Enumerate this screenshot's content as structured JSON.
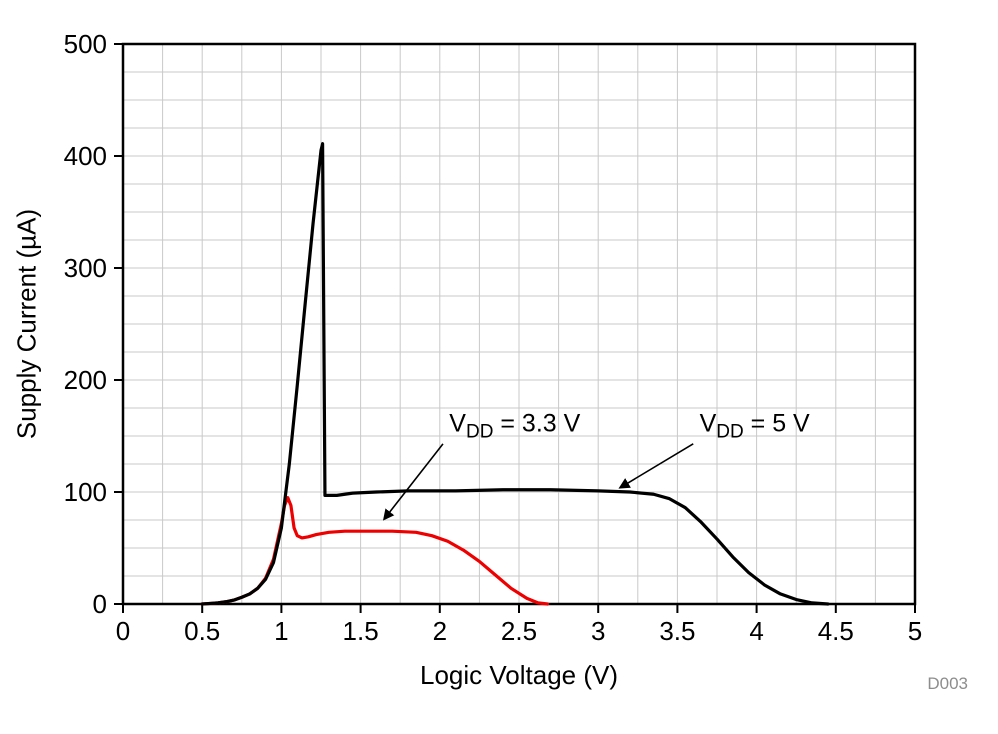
{
  "chart_data": {
    "type": "line",
    "title": "",
    "xlabel": "Logic Voltage (V)",
    "ylabel": "Supply Current (µA)",
    "watermark": "D003",
    "xlim": [
      0,
      5
    ],
    "ylim": [
      0,
      500
    ],
    "x_ticks": [
      0,
      0.5,
      1,
      1.5,
      2,
      2.5,
      3,
      3.5,
      4,
      4.5,
      5
    ],
    "x_tick_labels": [
      "0",
      "0.5",
      "1",
      "1.5",
      "2",
      "2.5",
      "3",
      "3.5",
      "4",
      "4.5",
      "5"
    ],
    "y_ticks": [
      0,
      100,
      200,
      300,
      400,
      500
    ],
    "y_tick_labels": [
      "0",
      "100",
      "200",
      "300",
      "400",
      "500"
    ],
    "grid": true,
    "grid_color": "#c9c9c9",
    "x_minor_step": 0.25,
    "y_minor_step": 25,
    "frame_color": "#000000",
    "series": [
      {
        "name": "VDD = 3.3 V",
        "color": "#ee0000",
        "points": [
          [
            0.5,
            0
          ],
          [
            0.55,
            0.5
          ],
          [
            0.6,
            1
          ],
          [
            0.65,
            2
          ],
          [
            0.7,
            3.5
          ],
          [
            0.75,
            6
          ],
          [
            0.8,
            9
          ],
          [
            0.85,
            14
          ],
          [
            0.9,
            23
          ],
          [
            0.95,
            40
          ],
          [
            1.0,
            72
          ],
          [
            1.02,
            88
          ],
          [
            1.04,
            95
          ],
          [
            1.06,
            88
          ],
          [
            1.08,
            68
          ],
          [
            1.1,
            61
          ],
          [
            1.13,
            59
          ],
          [
            1.17,
            60
          ],
          [
            1.22,
            62
          ],
          [
            1.3,
            64
          ],
          [
            1.4,
            65
          ],
          [
            1.55,
            65
          ],
          [
            1.7,
            65
          ],
          [
            1.85,
            64
          ],
          [
            1.95,
            61
          ],
          [
            2.05,
            56
          ],
          [
            2.15,
            48
          ],
          [
            2.25,
            38
          ],
          [
            2.35,
            26
          ],
          [
            2.45,
            14
          ],
          [
            2.55,
            5
          ],
          [
            2.62,
            1
          ],
          [
            2.68,
            0
          ]
        ]
      },
      {
        "name": "VDD = 5 V",
        "color": "#000000",
        "points": [
          [
            0.5,
            0
          ],
          [
            0.55,
            0.5
          ],
          [
            0.6,
            1
          ],
          [
            0.65,
            2
          ],
          [
            0.7,
            3.5
          ],
          [
            0.75,
            6
          ],
          [
            0.8,
            9
          ],
          [
            0.85,
            14
          ],
          [
            0.9,
            22
          ],
          [
            0.95,
            37
          ],
          [
            1.0,
            68
          ],
          [
            1.05,
            125
          ],
          [
            1.1,
            195
          ],
          [
            1.15,
            268
          ],
          [
            1.2,
            340
          ],
          [
            1.25,
            405
          ],
          [
            1.26,
            411
          ],
          [
            1.275,
            97
          ],
          [
            1.35,
            97
          ],
          [
            1.45,
            99
          ],
          [
            1.6,
            100
          ],
          [
            1.8,
            101
          ],
          [
            2.1,
            101
          ],
          [
            2.4,
            102
          ],
          [
            2.7,
            102
          ],
          [
            3.0,
            101
          ],
          [
            3.2,
            100
          ],
          [
            3.35,
            98
          ],
          [
            3.45,
            94
          ],
          [
            3.55,
            86
          ],
          [
            3.65,
            73
          ],
          [
            3.75,
            58
          ],
          [
            3.85,
            42
          ],
          [
            3.95,
            28
          ],
          [
            4.05,
            17
          ],
          [
            4.15,
            9
          ],
          [
            4.25,
            4
          ],
          [
            4.35,
            1
          ],
          [
            4.45,
            0
          ]
        ]
      }
    ],
    "annotations": [
      {
        "pre": "V",
        "sub": "DD",
        "post": " = 3.3 V",
        "text_x": 2.06,
        "text_y": 154,
        "arrow": [
          [
            2.02,
            143
          ],
          [
            1.65,
            76
          ]
        ]
      },
      {
        "pre": "V",
        "sub": "DD",
        "post": " = 5 V",
        "text_x": 3.64,
        "text_y": 154,
        "arrow": [
          [
            3.6,
            143
          ],
          [
            3.14,
            104
          ]
        ]
      }
    ]
  }
}
